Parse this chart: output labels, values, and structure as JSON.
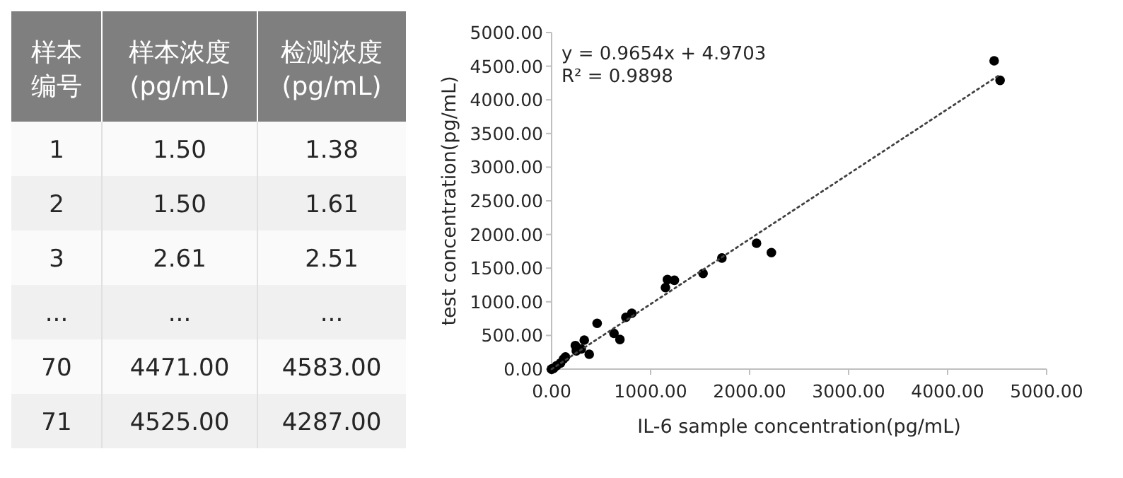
{
  "chart_data": [
    {
      "type": "other",
      "categories": [
        "样本编号",
        "样本浓度\n(pg/mL)",
        "检测浓度\n(pg/mL)"
      ],
      "annotations": [
        "1",
        "1.50",
        "1.38",
        "2",
        "1.50",
        "1.61",
        "3",
        "2.61",
        "2.51",
        "...",
        "...",
        "...",
        "70",
        "4471.00",
        "4583.00",
        "71",
        "4525.00",
        "4287.00"
      ]
    },
    {
      "type": "scatter",
      "xlabel": "IL-6 sample concentration(pg/mL)",
      "ylabel": "test concentration(pg/mL)",
      "annotations": [
        "y = 0.9654x + 4.9703",
        "R² = 0.9898"
      ],
      "xlim": [
        0,
        5000
      ],
      "ylim": [
        0,
        5000
      ],
      "xticks": [
        {
          "value": 0,
          "label": "0.00"
        },
        {
          "value": 1000,
          "label": "1000.00"
        },
        {
          "value": 2000,
          "label": "2000.00"
        },
        {
          "value": 3000,
          "label": "3000.00"
        },
        {
          "value": 4000,
          "label": "4000.00"
        },
        {
          "value": 5000,
          "label": "5000.00"
        }
      ],
      "yticks": [
        {
          "value": 0,
          "label": "0.00"
        },
        {
          "value": 500,
          "label": "500.00"
        },
        {
          "value": 1000,
          "label": "1000.00"
        },
        {
          "value": 1500,
          "label": "1500.00"
        },
        {
          "value": 2000,
          "label": "2000.00"
        },
        {
          "value": 2500,
          "label": "2500.00"
        },
        {
          "value": 3000,
          "label": "3000.00"
        },
        {
          "value": 3500,
          "label": "3500.00"
        },
        {
          "value": 4000,
          "label": "4000.00"
        },
        {
          "value": 4500,
          "label": "4500.00"
        },
        {
          "value": 5000,
          "label": "5000.00"
        }
      ],
      "grid": false,
      "marker": "circle",
      "series": [
        {
          "type": "scatter",
          "color": "#000000",
          "x": [
            0,
            0,
            0,
            20,
            50,
            90,
            120,
            140,
            240,
            250,
            300,
            330,
            380,
            460,
            630,
            690,
            750,
            810,
            1150,
            1170,
            1240,
            1530,
            1720,
            2070,
            2220,
            4470,
            4530
          ],
          "values": [
            0,
            0,
            0,
            10,
            50,
            90,
            150,
            180,
            350,
            270,
            300,
            430,
            220,
            680,
            530,
            440,
            770,
            830,
            1210,
            1330,
            1320,
            1420,
            1650,
            1870,
            1730,
            4580,
            4290
          ]
        },
        {
          "type": "line",
          "color": "#404040",
          "line_style": "dotted",
          "marker": "none",
          "x": [
            0,
            4525
          ],
          "values": [
            0,
            4370
          ]
        }
      ]
    }
  ]
}
